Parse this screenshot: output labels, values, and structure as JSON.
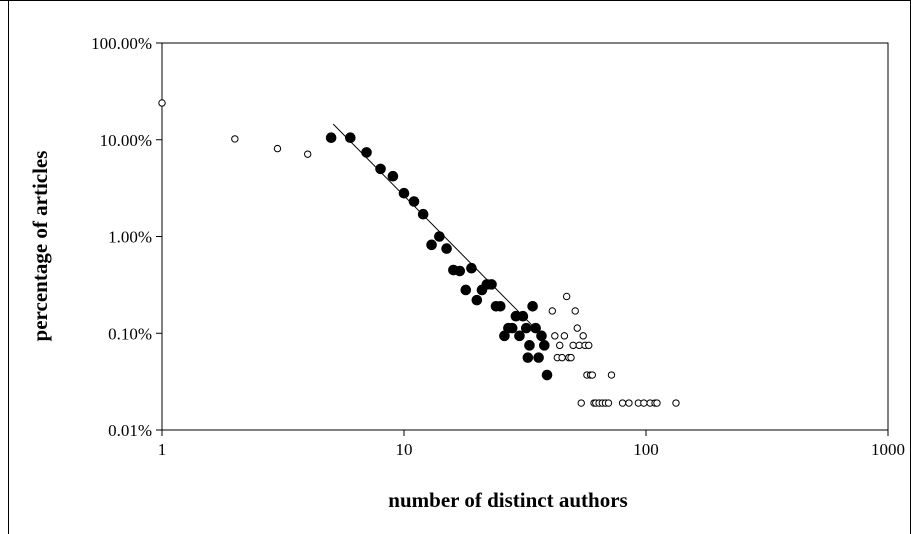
{
  "chart_data": {
    "type": "scatter",
    "title": "",
    "xlabel": "number of distinct authors",
    "ylabel": "percentage of articles",
    "x_scale": "log",
    "y_scale": "log",
    "xlim": [
      1,
      1000
    ],
    "ylim": [
      0.01,
      100
    ],
    "x_ticks": [
      {
        "value": 1,
        "label": "1"
      },
      {
        "value": 10,
        "label": "10"
      },
      {
        "value": 100,
        "label": "100"
      },
      {
        "value": 1000,
        "label": "1000"
      }
    ],
    "y_ticks": [
      {
        "value": 0.01,
        "label": "0.01%"
      },
      {
        "value": 0.1,
        "label": "0.10%"
      },
      {
        "value": 1,
        "label": "1.00%"
      },
      {
        "value": 10,
        "label": "10.00%"
      },
      {
        "value": 100,
        "label": "100.00%"
      }
    ],
    "grid": false,
    "legend": "none",
    "series": [
      {
        "marker": "filled-circle",
        "color": "#000000",
        "points": [
          [
            5,
            10.5
          ],
          [
            6,
            10.5
          ],
          [
            7,
            7.4
          ],
          [
            8,
            5.0
          ],
          [
            9,
            4.2
          ],
          [
            10,
            2.8
          ],
          [
            11,
            2.3
          ],
          [
            12,
            1.7
          ],
          [
            13,
            0.82
          ],
          [
            14,
            1.0
          ],
          [
            15,
            0.75
          ],
          [
            16,
            0.45
          ],
          [
            17,
            0.44
          ],
          [
            18,
            0.28
          ],
          [
            19,
            0.47
          ],
          [
            20,
            0.22
          ],
          [
            21,
            0.28
          ],
          [
            22,
            0.32
          ],
          [
            23,
            0.32
          ],
          [
            24,
            0.19
          ],
          [
            25,
            0.19
          ],
          [
            26,
            0.094
          ],
          [
            27,
            0.113
          ],
          [
            28,
            0.113
          ],
          [
            29,
            0.15
          ],
          [
            30,
            0.094
          ],
          [
            31,
            0.15
          ],
          [
            32,
            0.113
          ],
          [
            32.5,
            0.056
          ],
          [
            33,
            0.075
          ],
          [
            34,
            0.19
          ],
          [
            35,
            0.113
          ],
          [
            36,
            0.056
          ],
          [
            37,
            0.094
          ],
          [
            38,
            0.075
          ],
          [
            39,
            0.037
          ]
        ]
      },
      {
        "marker": "open-circle",
        "color": "#000000",
        "points": [
          [
            1,
            24
          ],
          [
            2,
            10.2
          ],
          [
            3,
            8.1
          ],
          [
            4,
            7.1
          ],
          [
            41,
            0.17
          ],
          [
            42,
            0.094
          ],
          [
            43,
            0.056
          ],
          [
            44,
            0.075
          ],
          [
            45,
            0.056
          ],
          [
            46,
            0.094
          ],
          [
            47,
            0.24
          ],
          [
            48,
            0.056
          ],
          [
            49,
            0.056
          ],
          [
            50,
            0.075
          ],
          [
            51,
            0.17
          ],
          [
            52,
            0.113
          ],
          [
            53,
            0.075
          ],
          [
            55,
            0.094
          ],
          [
            56,
            0.075
          ],
          [
            57,
            0.037
          ],
          [
            58,
            0.075
          ],
          [
            59,
            0.037
          ],
          [
            60,
            0.037
          ],
          [
            61,
            0.019
          ],
          [
            54,
            0.019
          ],
          [
            62,
            0.019
          ],
          [
            64,
            0.019
          ],
          [
            66,
            0.019
          ],
          [
            68,
            0.019
          ],
          [
            70,
            0.019
          ],
          [
            72,
            0.037
          ],
          [
            80,
            0.019
          ],
          [
            85,
            0.019
          ],
          [
            93,
            0.019
          ],
          [
            98,
            0.019
          ],
          [
            104,
            0.019
          ],
          [
            109,
            0.019
          ],
          [
            111,
            0.019
          ],
          [
            133,
            0.019
          ]
        ]
      },
      {
        "marker": "line",
        "color": "#000000",
        "points": [
          [
            5.1,
            14.5
          ],
          [
            38,
            0.09
          ]
        ]
      }
    ]
  }
}
